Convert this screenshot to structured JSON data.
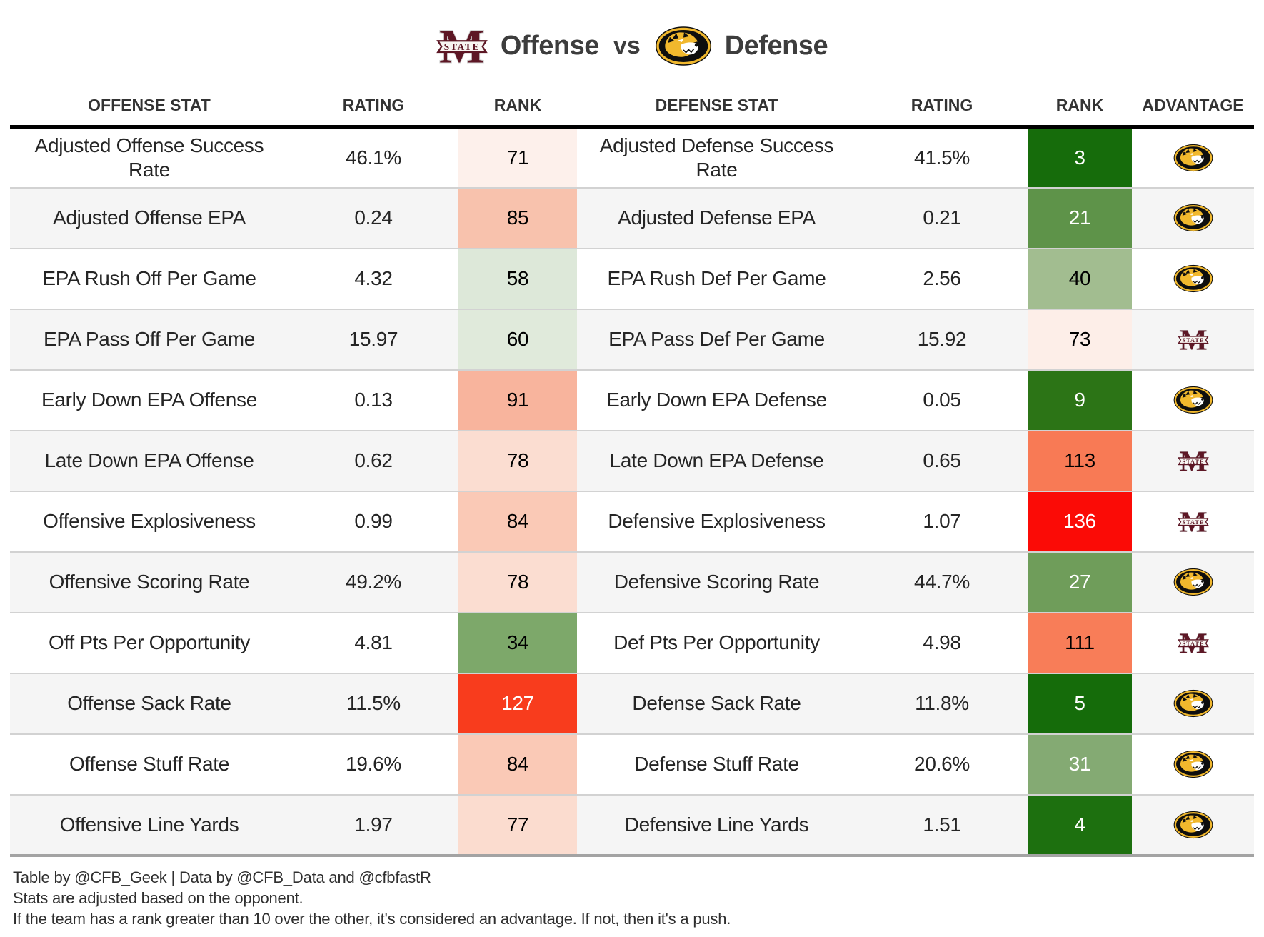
{
  "title": {
    "left_logo": "mississippi-state-logo",
    "left_label": "Offense",
    "vs_label": "vs",
    "right_logo": "missouri-logo",
    "right_label": "Defense"
  },
  "columns": [
    "Offense Stat",
    "Rating",
    "Rank",
    "Defense Stat",
    "Rating",
    "Rank",
    "Advantage"
  ],
  "brand_colors": {
    "msstate_maroon": "#5d1725",
    "missouri_gold": "#f1b82d",
    "missouri_black": "#0e0e0e"
  },
  "rows": [
    {
      "offense_stat": "Adjusted Offense Success Rate",
      "offense_rating": "46.1%",
      "offense_rank": "71",
      "offense_rank_bg": "#fdf0eb",
      "offense_rank_fg": "#000000",
      "defense_stat": "Adjusted Defense Success Rate",
      "defense_rating": "41.5%",
      "defense_rank": "3",
      "defense_rank_bg": "#166c0b",
      "defense_rank_fg": "#ffffff",
      "advantage": "missouri"
    },
    {
      "offense_stat": "Adjusted Offense EPA",
      "offense_rating": "0.24",
      "offense_rank": "85",
      "offense_rank_bg": "#f8c2ad",
      "offense_rank_fg": "#000000",
      "defense_stat": "Adjusted Defense EPA",
      "defense_rating": "0.21",
      "defense_rank": "21",
      "defense_rank_bg": "#5e9349",
      "defense_rank_fg": "#ffffff",
      "advantage": "missouri"
    },
    {
      "offense_stat": "EPA Rush Off Per Game",
      "offense_rating": "4.32",
      "offense_rank": "58",
      "offense_rank_bg": "#dde8d9",
      "offense_rank_fg": "#000000",
      "defense_stat": "EPA Rush Def Per Game",
      "defense_rating": "2.56",
      "defense_rank": "40",
      "defense_rank_bg": "#a2bd90",
      "defense_rank_fg": "#000000",
      "advantage": "missouri"
    },
    {
      "offense_stat": "EPA Pass Off Per Game",
      "offense_rating": "15.97",
      "offense_rank": "60",
      "offense_rank_bg": "#e0eadb",
      "offense_rank_fg": "#000000",
      "defense_stat": "EPA Pass Def Per Game",
      "defense_rating": "15.92",
      "defense_rank": "73",
      "defense_rank_bg": "#fdeee8",
      "defense_rank_fg": "#000000",
      "advantage": "msstate"
    },
    {
      "offense_stat": "Early Down EPA Offense",
      "offense_rating": "0.13",
      "offense_rank": "91",
      "offense_rank_bg": "#f8b49d",
      "offense_rank_fg": "#000000",
      "defense_stat": "Early Down EPA Defense",
      "defense_rating": "0.05",
      "defense_rank": "9",
      "defense_rank_bg": "#2c7416",
      "defense_rank_fg": "#ffffff",
      "advantage": "missouri"
    },
    {
      "offense_stat": "Late Down EPA Offense",
      "offense_rating": "0.62",
      "offense_rank": "78",
      "offense_rank_bg": "#fbddd1",
      "offense_rank_fg": "#000000",
      "defense_stat": "Late Down EPA Defense",
      "defense_rating": "0.65",
      "defense_rank": "113",
      "defense_rank_bg": "#f87a55",
      "defense_rank_fg": "#000000",
      "advantage": "msstate"
    },
    {
      "offense_stat": "Offensive Explosiveness",
      "offense_rating": "0.99",
      "offense_rank": "84",
      "offense_rank_bg": "#fac9b6",
      "offense_rank_fg": "#000000",
      "defense_stat": "Defensive Explosiveness",
      "defense_rating": "1.07",
      "defense_rank": "136",
      "defense_rank_bg": "#fb0b06",
      "defense_rank_fg": "#ffffff",
      "advantage": "msstate"
    },
    {
      "offense_stat": "Offensive Scoring Rate",
      "offense_rating": "49.2%",
      "offense_rank": "78",
      "offense_rank_bg": "#fbddd1",
      "offense_rank_fg": "#000000",
      "defense_stat": "Defensive Scoring Rate",
      "defense_rating": "44.7%",
      "defense_rank": "27",
      "defense_rank_bg": "#6f9d5a",
      "defense_rank_fg": "#ffffff",
      "advantage": "missouri"
    },
    {
      "offense_stat": "Off Pts Per Opportunity",
      "offense_rating": "4.81",
      "offense_rank": "34",
      "offense_rank_bg": "#7da86a",
      "offense_rank_fg": "#000000",
      "defense_stat": "Def Pts Per Opportunity",
      "defense_rating": "4.98",
      "defense_rank": "111",
      "defense_rank_bg": "#f87d58",
      "defense_rank_fg": "#000000",
      "advantage": "msstate"
    },
    {
      "offense_stat": "Offense Sack Rate",
      "offense_rating": "11.5%",
      "offense_rank": "127",
      "offense_rank_bg": "#f83c1d",
      "offense_rank_fg": "#ffffff",
      "defense_stat": "Defense Sack Rate",
      "defense_rating": "11.8%",
      "defense_rank": "5",
      "defense_rank_bg": "#156c0a",
      "defense_rank_fg": "#ffffff",
      "advantage": "missouri"
    },
    {
      "offense_stat": "Offense Stuff Rate",
      "offense_rating": "19.6%",
      "offense_rank": "84",
      "offense_rank_bg": "#fac9b6",
      "offense_rank_fg": "#000000",
      "defense_stat": "Defense Stuff Rate",
      "defense_rating": "20.6%",
      "defense_rank": "31",
      "defense_rank_bg": "#84aa73",
      "defense_rank_fg": "#ffffff",
      "advantage": "missouri"
    },
    {
      "offense_stat": "Offensive Line Yards",
      "offense_rating": "1.97",
      "offense_rank": "77",
      "offense_rank_bg": "#fbdccf",
      "offense_rank_fg": "#000000",
      "defense_stat": "Defensive Line Yards",
      "defense_rating": "1.51",
      "defense_rank": "4",
      "defense_rank_bg": "#1d700f",
      "defense_rank_fg": "#ffffff",
      "advantage": "missouri"
    }
  ],
  "footer": {
    "credit": "Table by @CFB_Geek | Data by @CFB_Data and @cfbfastR",
    "note1": "Stats are adjusted based on the opponent.",
    "note2": "If the team has a rank greater than 10 over the other, it's considered an advantage. If not, then it's a push."
  },
  "chart_data": {
    "type": "table",
    "title": "Offense vs Defense",
    "columns": [
      "Offense Stat",
      "Rating",
      "Rank",
      "Defense Stat",
      "Rating",
      "Rank",
      "Advantage"
    ],
    "rows": [
      [
        "Adjusted Offense Success Rate",
        "46.1%",
        71,
        "Adjusted Defense Success Rate",
        "41.5%",
        3,
        "Missouri"
      ],
      [
        "Adjusted Offense EPA",
        "0.24",
        85,
        "Adjusted Defense EPA",
        "0.21",
        21,
        "Missouri"
      ],
      [
        "EPA Rush Off Per Game",
        "4.32",
        58,
        "EPA Rush Def Per Game",
        "2.56",
        40,
        "Missouri"
      ],
      [
        "EPA Pass Off Per Game",
        "15.97",
        60,
        "EPA Pass Def Per Game",
        "15.92",
        73,
        "Mississippi State"
      ],
      [
        "Early Down EPA Offense",
        "0.13",
        91,
        "Early Down EPA Defense",
        "0.05",
        9,
        "Missouri"
      ],
      [
        "Late Down EPA Offense",
        "0.62",
        78,
        "Late Down EPA Defense",
        "0.65",
        113,
        "Mississippi State"
      ],
      [
        "Offensive Explosiveness",
        "0.99",
        84,
        "Defensive Explosiveness",
        "1.07",
        136,
        "Mississippi State"
      ],
      [
        "Offensive Scoring Rate",
        "49.2%",
        78,
        "Defensive Scoring Rate",
        "44.7%",
        27,
        "Missouri"
      ],
      [
        "Off Pts Per Opportunity",
        "4.81",
        34,
        "Def Pts Per Opportunity",
        "4.98",
        111,
        "Mississippi State"
      ],
      [
        "Offense Sack Rate",
        "11.5%",
        127,
        "Defense Sack Rate",
        "11.8%",
        5,
        "Missouri"
      ],
      [
        "Offense Stuff Rate",
        "19.6%",
        84,
        "Defense Stuff Rate",
        "20.6%",
        31,
        "Missouri"
      ],
      [
        "Offensive Line Yards",
        "1.97",
        77,
        "Defensive Line Yards",
        "1.51",
        4,
        "Missouri"
      ]
    ]
  }
}
